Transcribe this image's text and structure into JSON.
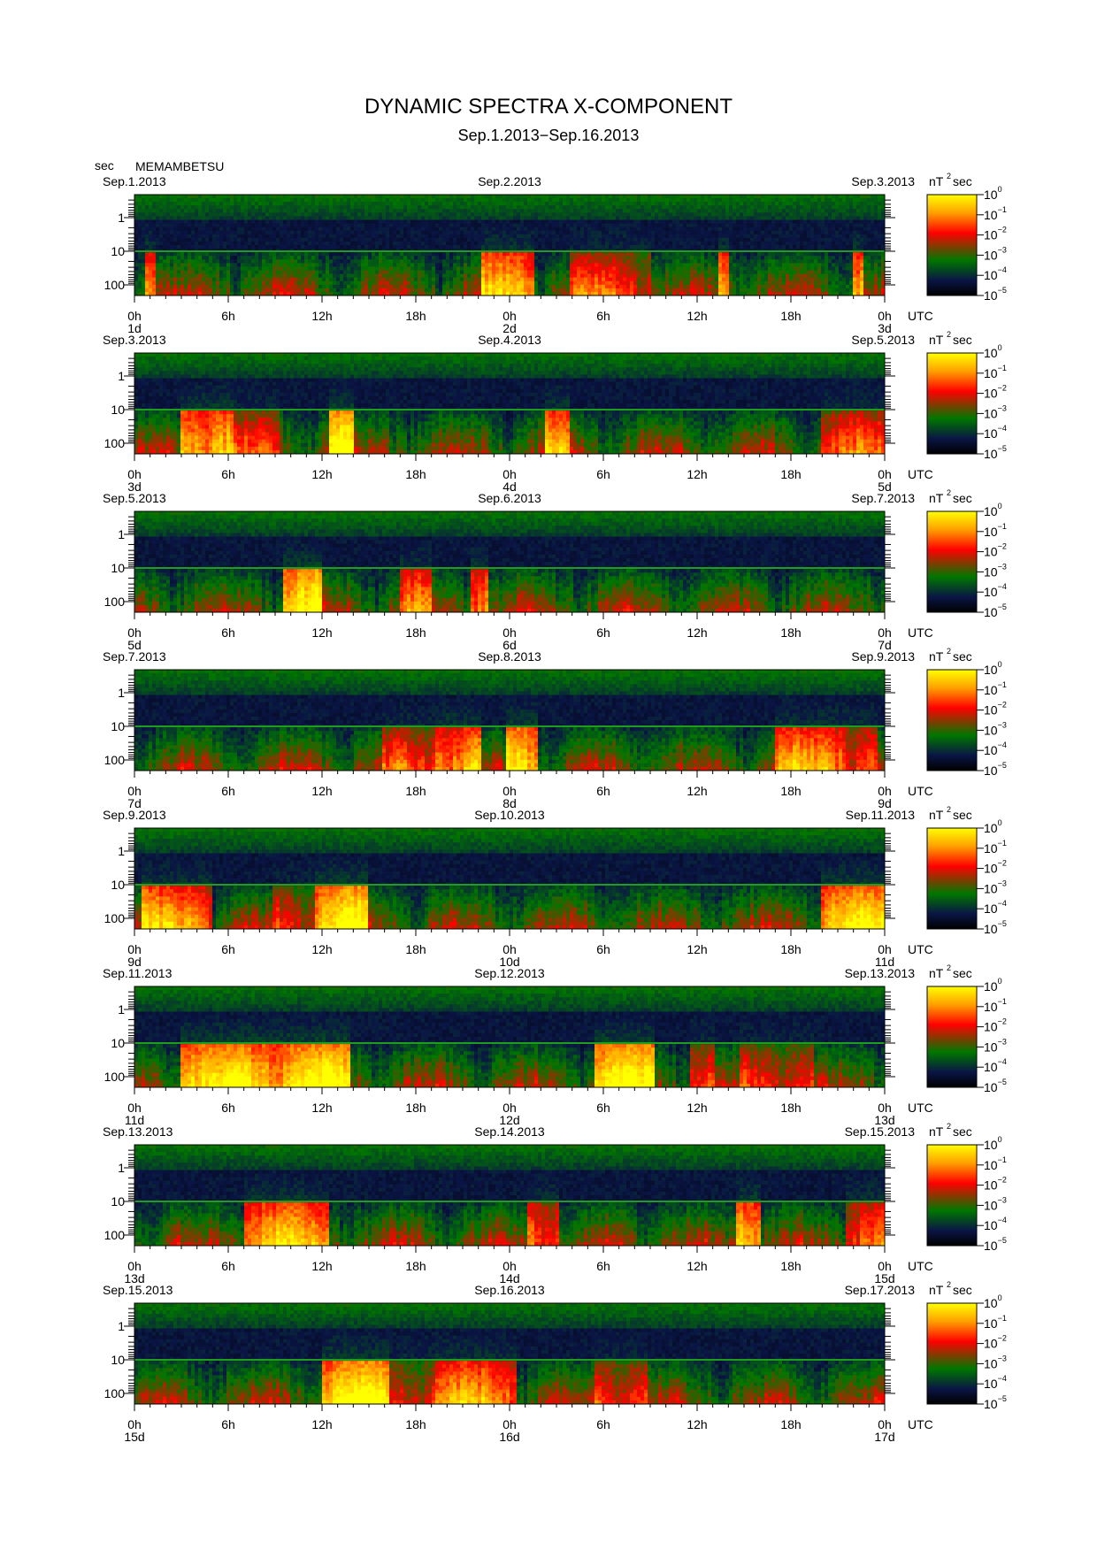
{
  "header": {
    "title": "DYNAMIC SPECTRA X-COMPONENT",
    "subtitle": "Sep.1.2013−Sep.16.2013",
    "y_unit": "sec",
    "station": "MEMAMBETSU"
  },
  "chart_data": {
    "type": "heatmap",
    "colormap": [
      "#000000",
      "#0a1545",
      "#007700",
      "#ff0000",
      "#ffa000",
      "#ffff00"
    ],
    "yaxis": {
      "label": "sec",
      "scale": "log",
      "ticks": [
        "1",
        "10",
        "100"
      ]
    },
    "colorbar": {
      "unit_base": "nT",
      "unit_sup": "2",
      "unit_tail": "sec",
      "ticks": [
        {
          "base": "10",
          "exp": "0"
        },
        {
          "base": "10",
          "exp": "−1"
        },
        {
          "base": "10",
          "exp": "−2"
        },
        {
          "base": "10",
          "exp": "−3"
        },
        {
          "base": "10",
          "exp": "−4"
        },
        {
          "base": "10",
          "exp": "−5"
        }
      ]
    },
    "xaxis": {
      "ticks": [
        "0h",
        "6h",
        "12h",
        "18h",
        "0h",
        "6h",
        "12h",
        "18h",
        "0h"
      ],
      "tz": "UTC"
    },
    "panels": [
      {
        "left_date": "Sep.1.2013",
        "mid_date": "Sep.2.2013",
        "right_date": "Sep.3.2013",
        "day_labels": [
          "1d",
          "2d",
          "3d"
        ]
      },
      {
        "left_date": "Sep.3.2013",
        "mid_date": "Sep.4.2013",
        "right_date": "Sep.5.2013",
        "day_labels": [
          "3d",
          "4d",
          "5d"
        ]
      },
      {
        "left_date": "Sep.5.2013",
        "mid_date": "Sep.6.2013",
        "right_date": "Sep.7.2013",
        "day_labels": [
          "5d",
          "6d",
          "7d"
        ]
      },
      {
        "left_date": "Sep.7.2013",
        "mid_date": "Sep.8.2013",
        "right_date": "Sep.9.2013",
        "day_labels": [
          "7d",
          "8d",
          "9d"
        ]
      },
      {
        "left_date": "Sep.9.2013",
        "mid_date": "Sep.10.2013",
        "right_date": "Sep.11.2013",
        "day_labels": [
          "9d",
          "10d",
          "11d"
        ]
      },
      {
        "left_date": "Sep.11.2013",
        "mid_date": "Sep.12.2013",
        "right_date": "Sep.13.2013",
        "day_labels": [
          "11d",
          "12d",
          "13d"
        ]
      },
      {
        "left_date": "Sep.13.2013",
        "mid_date": "Sep.14.2013",
        "right_date": "Sep.15.2013",
        "day_labels": [
          "13d",
          "14d",
          "15d"
        ]
      },
      {
        "left_date": "Sep.15.2013",
        "mid_date": "Sep.16.2013",
        "right_date": "Sep.17.2013",
        "day_labels": [
          "15d",
          "16d",
          "17d"
        ]
      }
    ]
  }
}
